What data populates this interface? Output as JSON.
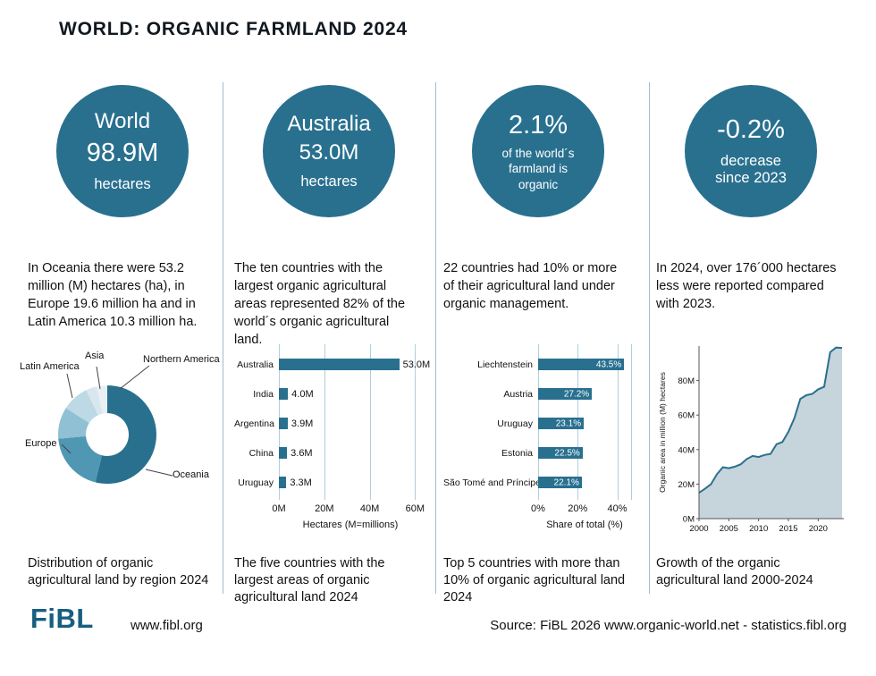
{
  "title": "WORLD: ORGANIC FARMLAND 2024",
  "colors": {
    "accent": "#29708F",
    "grid": "#aecfdd",
    "divider": "#9dbfcd",
    "area_fill": "#c6d4dc"
  },
  "columns": [
    {
      "circle_lines": [
        "World",
        "98.9M",
        "hectares"
      ],
      "description": "In Oceania there were 53.2 million (M) hectares (ha), in Europe 19.6 million ha and in Latin America 10.3 million ha.",
      "caption": "Distribution of organic agricultural land by region 2024"
    },
    {
      "circle_lines": [
        "Australia",
        "53.0M",
        "hectares"
      ],
      "description": "The ten countries with the largest organic agricultural areas represented 82% of the world´s organic agricultural land.",
      "caption": "The five countries with the largest areas of organic agricultural land 2024"
    },
    {
      "circle_lines": [
        "2.1%",
        "of the world´s",
        "farmland is",
        "organic"
      ],
      "description": "22 countries had 10% or more of their agricultural land under organic management.",
      "caption": "Top 5 countries with more than 10% of organic agricultural land 2024"
    },
    {
      "circle_lines": [
        "-0.2%",
        "decrease",
        "since 2023"
      ],
      "description": "In 2024, over 176´000 hectares less were reported compared with 2023.",
      "caption": "Growth of the organic agricultural land 2000-2024"
    }
  ],
  "footer": {
    "logo": "FiBL",
    "website": "www.fibl.org",
    "source": "Source: FiBL 2026 www.organic-world.net - statistics.fibl.org"
  },
  "chart_data": [
    {
      "type": "pie",
      "title": "Distribution of organic agricultural land by region 2024",
      "unit": "% share of world organic agricultural land (estimated from donut)",
      "segments": [
        {
          "label": "Oceania",
          "value": 53.8,
          "color": "#29708F"
        },
        {
          "label": "Europe",
          "value": 19.8,
          "color": "#4F97B2"
        },
        {
          "label": "Latin America",
          "value": 10.4,
          "color": "#8FC0D3"
        },
        {
          "label": "Asia",
          "value": 8.9,
          "color": "#BCD9E5"
        },
        {
          "label": "Northern America",
          "value": 3.6,
          "color": "#D8E7EE"
        },
        {
          "label": "",
          "value": 3.5,
          "color": "#E8F0F4"
        }
      ]
    },
    {
      "type": "bar",
      "orientation": "horizontal",
      "title": "The five countries with the largest areas of organic agricultural land 2024",
      "categories": [
        "Australia",
        "India",
        "Argentina",
        "China",
        "Uruguay"
      ],
      "values": [
        53.0,
        4.0,
        3.9,
        3.6,
        3.3
      ],
      "value_labels": [
        "53.0M",
        "4.0M",
        "3.9M",
        "3.6M",
        "3.3M"
      ],
      "xlabel": "Hectares (M=millions)",
      "xticks": [
        {
          "value": 0,
          "label": "0M"
        },
        {
          "value": 20,
          "label": "20M"
        },
        {
          "value": 40,
          "label": "40M"
        },
        {
          "value": 60,
          "label": "60M"
        }
      ],
      "xlim": [
        0,
        63
      ]
    },
    {
      "type": "bar",
      "orientation": "horizontal",
      "title": "Top 5 countries with more than 10% of organic agricultural land 2024",
      "categories": [
        "Liechtenstein",
        "Austria",
        "Uruguay",
        "Estonia",
        "São Tomé and Príncipe"
      ],
      "values": [
        43.5,
        27.2,
        23.1,
        22.5,
        22.1
      ],
      "value_labels": [
        "43.5%",
        "27.2%",
        "23.1%",
        "22.5%",
        "22.1%"
      ],
      "xlabel": "Share of total (%)",
      "xticks": [
        {
          "value": 0,
          "label": "0%"
        },
        {
          "value": 20,
          "label": "20%"
        },
        {
          "value": 40,
          "label": "40%"
        },
        {
          "value": 47,
          "label": ""
        }
      ],
      "xlim": [
        0,
        47
      ]
    },
    {
      "type": "area",
      "title": "Growth of the organic agricultural land 2000-2024",
      "ylabel": "Organic area in million (M) hectares",
      "x": [
        2000,
        2001,
        2002,
        2003,
        2004,
        2005,
        2006,
        2007,
        2008,
        2009,
        2010,
        2011,
        2012,
        2013,
        2014,
        2015,
        2016,
        2017,
        2018,
        2019,
        2020,
        2021,
        2022,
        2023,
        2024
      ],
      "values": [
        15.0,
        17.3,
        19.9,
        25.7,
        29.8,
        29.2,
        30.1,
        31.5,
        34.5,
        36.3,
        35.7,
        36.9,
        37.5,
        43.1,
        44.4,
        50.3,
        58.2,
        69.4,
        71.5,
        72.3,
        74.9,
        76.4,
        96.4,
        99.1,
        98.9
      ],
      "yticks": [
        {
          "value": 0,
          "label": "0M"
        },
        {
          "value": 20,
          "label": "20M"
        },
        {
          "value": 40,
          "label": "40M"
        },
        {
          "value": 60,
          "label": "60M"
        },
        {
          "value": 80,
          "label": "80M"
        }
      ],
      "xticks": [
        2000,
        2005,
        2010,
        2015,
        2020
      ],
      "ylim": [
        0,
        100
      ],
      "line_color": "#29708F",
      "fill_color": "#c6d4dc"
    }
  ]
}
